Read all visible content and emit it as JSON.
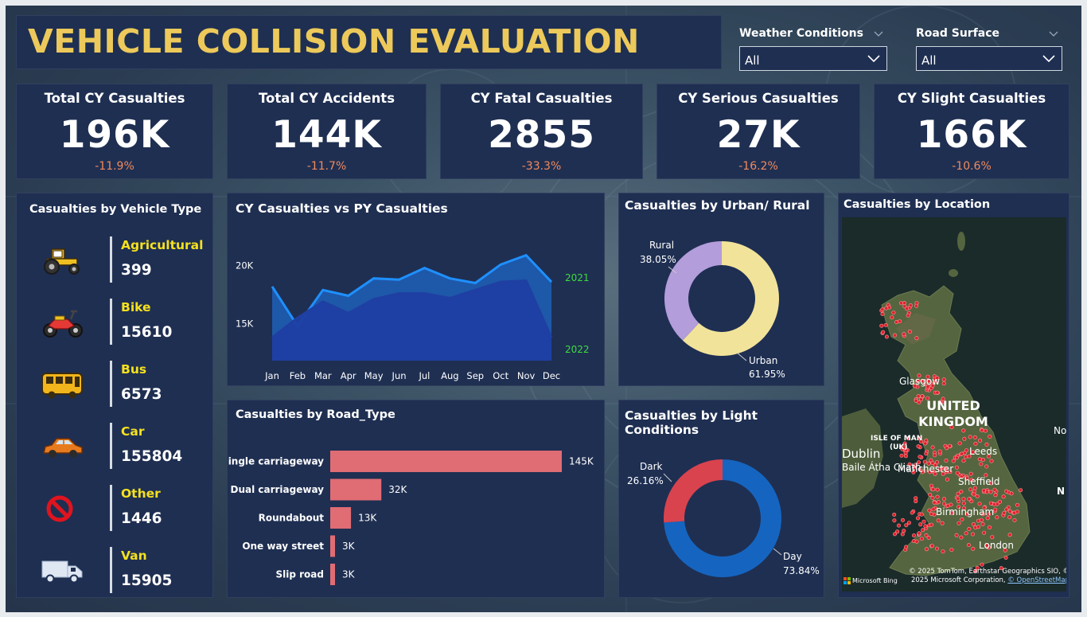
{
  "title": "VEHICLE COLLISION EVALUATION",
  "filters": [
    {
      "label": "Weather Conditions",
      "value": "All"
    },
    {
      "label": "Road Surface",
      "value": "All"
    }
  ],
  "kpis": [
    {
      "title": "Total CY Casualties",
      "value": "196K",
      "delta": "-11.9%"
    },
    {
      "title": "Total CY Accidents",
      "value": "144K",
      "delta": "-11.7%"
    },
    {
      "title": "CY Fatal Casualties",
      "value": "2855",
      "delta": "-33.3%"
    },
    {
      "title": "CY Serious Casualties",
      "value": "27K",
      "delta": "-16.2%"
    },
    {
      "title": "CY Slight Casualties",
      "value": "166K",
      "delta": "-10.6%"
    }
  ],
  "vehicle": {
    "title": "Casualties by Vehicle Type",
    "items": [
      {
        "name": "Agricultural",
        "value": "399",
        "icon": "tractor-icon"
      },
      {
        "name": "Bike",
        "value": "15610",
        "icon": "motorbike-icon"
      },
      {
        "name": "Bus",
        "value": "6573",
        "icon": "bus-icon"
      },
      {
        "name": "Car",
        "value": "155804",
        "icon": "car-icon"
      },
      {
        "name": "Other",
        "value": "1446",
        "icon": "no-entry-icon"
      },
      {
        "name": "Van",
        "value": "15905",
        "icon": "truck-icon"
      }
    ]
  },
  "panels": {
    "cy_py": "CY Casualties vs PY Casualties",
    "road_type": "Casualties by Road_Type",
    "urban_rural": "Casualties by Urban/ Rural",
    "light": "Casualties by Light Conditions",
    "location": "Casualties by Location"
  },
  "colors": {
    "accent_title": "#ecc95a",
    "panel": "#1f2f52",
    "delta_negative": "#f08a5d",
    "vehicle_label": "#f5e11f",
    "series_2021": "#1e90ff",
    "series_2022": "#1f3fa3",
    "bar": "#e06c74",
    "urban": "#f2e39a",
    "rural": "#b39ddb",
    "day": "#1565c0",
    "dark": "#d9434e"
  },
  "map": {
    "labels": [
      "UNITED",
      "KINGDOM",
      "Glasgow",
      "ISLE OF MAN",
      "(UK)",
      "Dublin",
      "Baile Átha Cliath",
      "Manchester",
      "Leeds",
      "Sheffield",
      "Birmingham",
      "London",
      "No",
      "N"
    ],
    "attribution": "© 2025 TomTom, Earthstar Geographics SIO, © 2025 Microsoft Corporation,",
    "osm": "© OpenStreetMap",
    "bing": "Microsoft Bing"
  },
  "chart_data": [
    {
      "type": "area",
      "title": "CY Casualties vs PY Casualties",
      "categories": [
        "Jan",
        "Feb",
        "Mar",
        "Apr",
        "May",
        "Jun",
        "Jul",
        "Aug",
        "Sep",
        "Oct",
        "Nov",
        "Dec"
      ],
      "ytick_labels": [
        "15K",
        "20K"
      ],
      "ylim": [
        11800,
        22800
      ],
      "series": [
        {
          "name": "2021",
          "values": [
            18200,
            14800,
            17900,
            17400,
            18900,
            18800,
            19800,
            18900,
            18500,
            20100,
            20900,
            18600
          ]
        },
        {
          "name": "2022",
          "values": [
            13800,
            15500,
            16900,
            15900,
            17100,
            17600,
            17600,
            17200,
            17900,
            18600,
            18700,
            13800
          ]
        }
      ]
    },
    {
      "type": "bar",
      "orientation": "horizontal",
      "title": "Casualties by Road_Type",
      "categories": [
        "Single carriageway",
        "Dual carriageway",
        "Roundabout",
        "One way street",
        "Slip road"
      ],
      "values": [
        145000,
        32000,
        13000,
        3000,
        3000
      ],
      "data_labels": [
        "145K",
        "32K",
        "13K",
        "3K",
        "3K"
      ]
    },
    {
      "type": "pie",
      "donut": true,
      "title": "Casualties by Urban/ Rural",
      "labels": [
        "Urban",
        "Rural"
      ],
      "values": [
        61.95,
        38.05
      ],
      "data_labels": [
        "61.95%",
        "38.05%"
      ]
    },
    {
      "type": "pie",
      "donut": true,
      "title": "Casualties by Light Conditions",
      "labels": [
        "Day",
        "Dark"
      ],
      "values": [
        73.84,
        26.16
      ],
      "data_labels": [
        "73.84%",
        "26.16%"
      ]
    }
  ]
}
